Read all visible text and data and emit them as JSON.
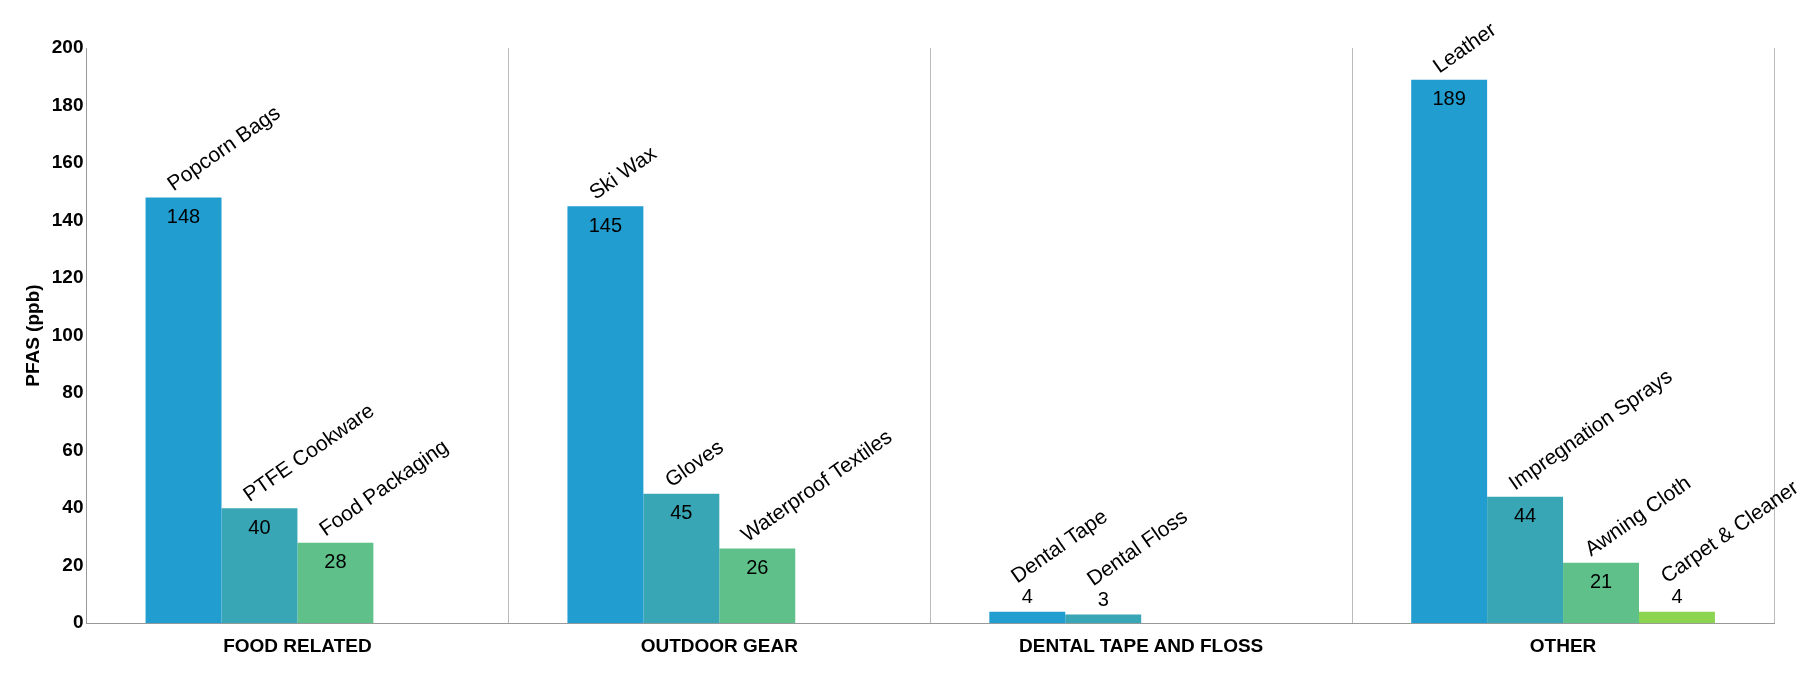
{
  "chart_data": {
    "type": "bar",
    "ylabel": "PFAS (ppb)",
    "categories": [
      "FOOD RELATED",
      "OUTDOOR GEAR",
      "DENTAL TAPE AND FLOSS",
      "OTHER"
    ],
    "series": [
      {
        "color": "#229dd0",
        "values": [
          148,
          145,
          4,
          189
        ]
      },
      {
        "color": "#38a6b4",
        "values": [
          40,
          45,
          3,
          44
        ]
      },
      {
        "color": "#5fc08a",
        "values": [
          28,
          26,
          null,
          21
        ]
      },
      {
        "color": "#8dd450",
        "values": [
          null,
          null,
          null,
          4
        ]
      }
    ],
    "ylim": [
      0,
      200
    ],
    "yticks": [
      0,
      20,
      40,
      60,
      80,
      100,
      120,
      140,
      160,
      180,
      200
    ],
    "grid": "x",
    "legend": false,
    "data_labels": true,
    "annotations": [
      "Popcorn Bags",
      "PTFE Cookware",
      "Food Packaging",
      "Ski Wax",
      "Gloves",
      "Waterproof Textiles",
      "Dental Tape",
      "Dental Floss",
      "Leather",
      "Impregnation Sprays",
      "Awning Cloth",
      "Carpet & Cleaner"
    ]
  }
}
